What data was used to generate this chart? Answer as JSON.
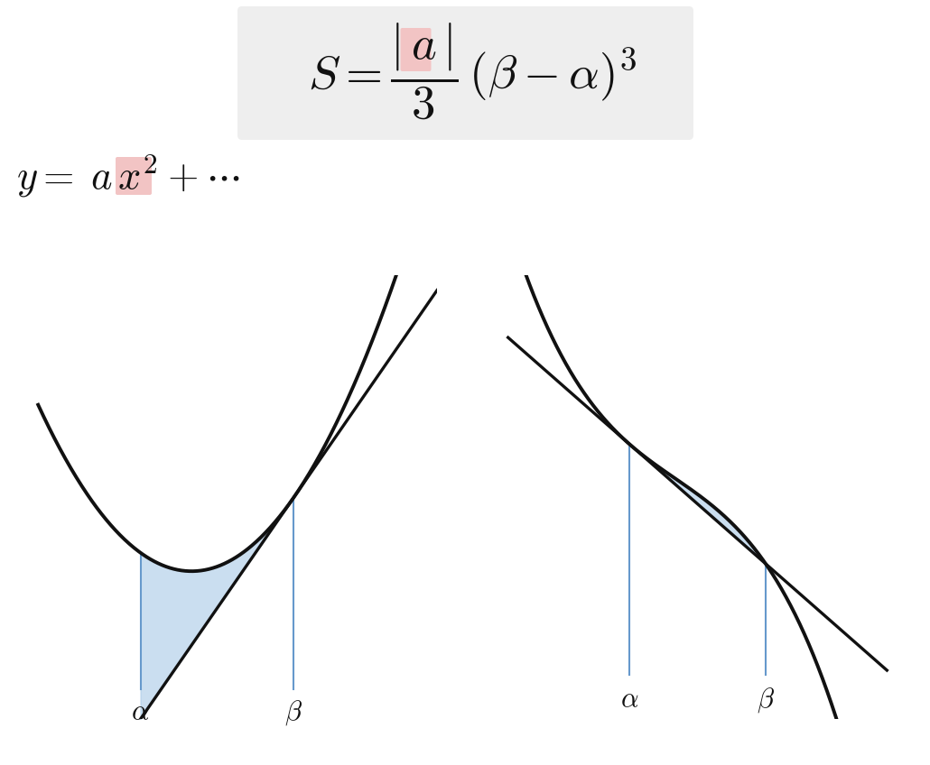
{
  "bg_color": "#ffffff",
  "formula_box_color": "#eeeeee",
  "pink_highlight": "#f2c4c4",
  "blue_fill": "#aecde8",
  "blue_fill_alpha": 0.65,
  "curve_color": "#111111",
  "line_color": "#111111",
  "vline_color": "#6699cc",
  "text_color": "#111111",
  "curve_lw": 2.8,
  "line_lw": 2.4,
  "vline_lw": 1.5
}
